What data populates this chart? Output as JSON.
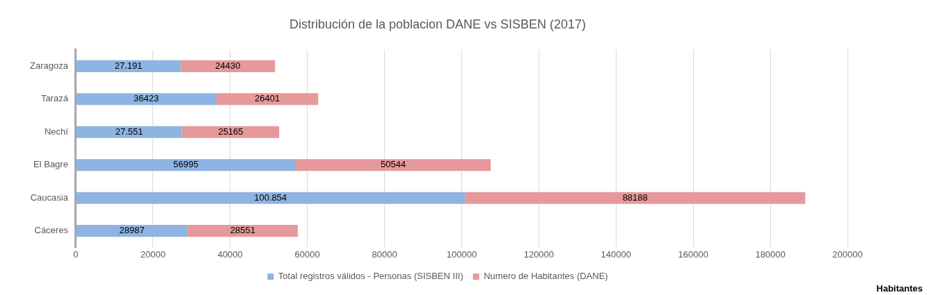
{
  "chart_data": {
    "type": "bar",
    "orientation": "horizontal",
    "stacked": true,
    "title": "Distribución de la poblacion DANE vs SISBEN (2017)",
    "xlabel": "Habitantes",
    "categories": [
      "Zaragoza",
      "Tarazá",
      "Nechí",
      "El Bagre",
      "Caucasia",
      "Cáceres"
    ],
    "series": [
      {
        "name": "Total registros válidos - Personas (SISBEN III)",
        "color": "#8db4e2",
        "values": [
          27191,
          36423,
          27551,
          56995,
          100854,
          28987
        ],
        "value_labels": [
          "27.191",
          "36423",
          "27.551",
          "56995",
          "100.854",
          "28987"
        ]
      },
      {
        "name": "Numero de Habitantes (DANE)",
        "color": "#e6999b",
        "values": [
          24430,
          26401,
          25165,
          50544,
          88188,
          28551
        ],
        "value_labels": [
          "24430",
          "26401",
          "25165",
          "50544",
          "88188",
          "28551"
        ]
      }
    ],
    "xlim": [
      0,
      200000
    ],
    "xticks": [
      0,
      20000,
      40000,
      60000,
      80000,
      100000,
      120000,
      140000,
      160000,
      180000,
      200000
    ],
    "grid": "x",
    "legend": "bottom"
  }
}
